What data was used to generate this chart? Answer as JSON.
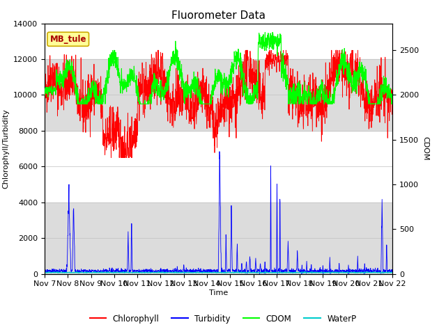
{
  "title": "Fluorometer Data",
  "xlabel": "Time",
  "ylabel_left": "Chlorophyll/Turbidity",
  "ylabel_right": "CDOM",
  "ylim_left": [
    0,
    14000
  ],
  "ylim_right": [
    0,
    2800
  ],
  "x_tick_labels": [
    "Nov 7",
    "Nov 8",
    "Nov 9",
    "Nov 10",
    "Nov 11",
    "Nov 12",
    "Nov 13",
    "Nov 14",
    "Nov 15",
    "Nov 16",
    "Nov 17",
    "Nov 18",
    "Nov 19",
    "Nov 20",
    "Nov 21",
    "Nov 22"
  ],
  "annotation_text": "MB_tule",
  "annotation_bg": "#FFFF99",
  "annotation_border": "#CCAA00",
  "colors": {
    "chlorophyll": "#FF0000",
    "turbidity": "#0000FF",
    "cdom": "#00FF00",
    "waterp": "#00CCCC"
  },
  "legend_labels": [
    "Chlorophyll",
    "Turbidity",
    "CDOM",
    "WaterP"
  ],
  "bg_bands": [
    {
      "ymin": 0,
      "ymax": 4000,
      "color": "#DCDCDC"
    },
    {
      "ymin": 8000,
      "ymax": 12000,
      "color": "#DCDCDC"
    }
  ],
  "title_fontsize": 11,
  "axis_label_fontsize": 8,
  "tick_fontsize": 8
}
